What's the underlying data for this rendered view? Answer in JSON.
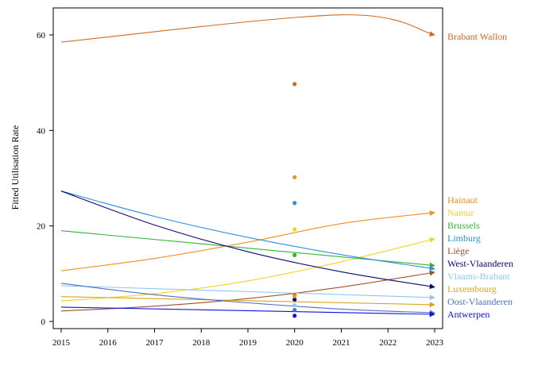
{
  "chart_data": {
    "type": "line",
    "title": "",
    "xlabel": "",
    "ylabel": "Fitted Utilisation Rate",
    "xlim": [
      2015,
      2023
    ],
    "ylim": [
      0,
      65
    ],
    "x_ticks": [
      2015,
      2016,
      2017,
      2018,
      2019,
      2020,
      2021,
      2022,
      2023
    ],
    "y_ticks": [
      0,
      20,
      40,
      60
    ],
    "grid": false,
    "legend": "direct labels at right end of lines",
    "series": [
      {
        "name": "Brabant Wallon",
        "color": "#d2691e",
        "x": [
          2015,
          2021,
          2023
        ],
        "y": [
          58.5,
          64.2,
          60.0
        ],
        "point2020": 49.7
      },
      {
        "name": "Hainaut",
        "color": "#f0901f",
        "x": [
          2015,
          2017,
          2019,
          2021,
          2023
        ],
        "y": [
          10.6,
          13.2,
          16.6,
          20.5,
          22.8
        ],
        "point2020": 30.2
      },
      {
        "name": "Namur",
        "color": "#f4d320",
        "x": [
          2015,
          2017,
          2019,
          2021,
          2023
        ],
        "y": [
          4.3,
          5.8,
          8.5,
          12.5,
          17.3
        ],
        "point2020": 19.3
      },
      {
        "name": "Brussels",
        "color": "#33b533",
        "x": [
          2015,
          2023
        ],
        "y": [
          19.0,
          11.7
        ],
        "point2020": 13.9
      },
      {
        "name": "Limburg",
        "color": "#2d8fe0",
        "x": [
          2015,
          2017,
          2019,
          2021,
          2023
        ],
        "y": [
          27.3,
          22.0,
          17.6,
          14.0,
          11.0
        ],
        "point2020": 24.8
      },
      {
        "name": "Liège",
        "color": "#a0522d",
        "x": [
          2015,
          2017,
          2019,
          2021,
          2023
        ],
        "y": [
          2.2,
          3.2,
          4.8,
          7.2,
          10.3
        ],
        "point2020": 5.5
      },
      {
        "name": "West-Vlaanderen",
        "color": "#0a0a6e",
        "x": [
          2015,
          2017,
          2019,
          2021,
          2023
        ],
        "y": [
          27.3,
          20.2,
          14.6,
          10.4,
          7.2
        ],
        "point2020": 4.6
      },
      {
        "name": "Vlaams-Brabant",
        "color": "#8ec8f0",
        "x": [
          2015,
          2023
        ],
        "y": [
          7.5,
          5.0
        ],
        "point2020": 3.4
      },
      {
        "name": "Luxembourg",
        "color": "#d9a520",
        "x": [
          2015,
          2023
        ],
        "y": [
          5.2,
          3.5
        ],
        "point2020": 5.3
      },
      {
        "name": "Oost-Vlaanderen",
        "color": "#4d6fc4",
        "x": [
          2015,
          2017,
          2019,
          2021,
          2023
        ],
        "y": [
          8.0,
          5.6,
          3.9,
          2.6,
          1.8
        ],
        "point2020": 2.4
      },
      {
        "name": "Antwerpen",
        "color": "#1010e0",
        "x": [
          2015,
          2023
        ],
        "y": [
          3.0,
          1.5
        ],
        "point2020": 1.2
      }
    ]
  }
}
